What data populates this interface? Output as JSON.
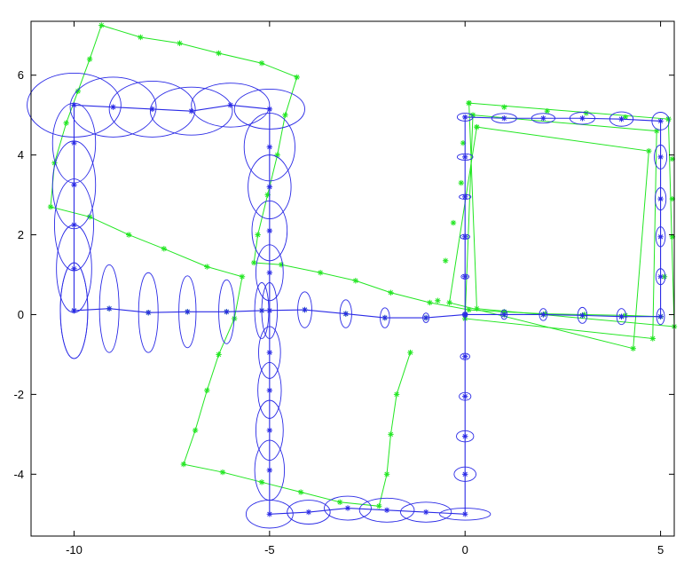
{
  "chart_data": {
    "type": "scatter",
    "title": "",
    "xlabel": "",
    "ylabel": "",
    "xlim": [
      -11.1,
      5.35
    ],
    "ylim": [
      -5.55,
      7.35
    ],
    "grid": false,
    "xticks": [
      -10,
      -5,
      0,
      5
    ],
    "yticks": [
      -4,
      -2,
      0,
      2,
      4,
      6
    ],
    "colors": {
      "estimate": "#2a2ae6",
      "truth": "#22e622",
      "axes": "#000000"
    },
    "series": [
      {
        "role": "estimated-trajectory",
        "color": "#2a2ae6",
        "marker": "*",
        "points": [
          [
            -10.0,
            0.1
          ],
          [
            -9.1,
            0.15
          ],
          [
            -8.1,
            0.05
          ],
          [
            -7.1,
            0.07
          ],
          [
            -6.1,
            0.07
          ],
          [
            -5.2,
            0.1
          ],
          [
            -4.1,
            0.12
          ],
          [
            -3.05,
            0.02
          ],
          [
            -2.05,
            -0.08
          ],
          [
            -1.0,
            -0.08
          ],
          [
            0.0,
            0.0
          ],
          [
            1.0,
            0.0
          ],
          [
            2.0,
            0.0
          ],
          [
            3.0,
            -0.02
          ],
          [
            4.0,
            -0.05
          ],
          [
            5.0,
            -0.05
          ],
          [
            5.0,
            0.95
          ],
          [
            5.0,
            1.95
          ],
          [
            5.0,
            2.9
          ],
          [
            5.0,
            3.95
          ],
          [
            5.0,
            4.85
          ],
          [
            4.0,
            4.9
          ],
          [
            3.0,
            4.92
          ],
          [
            2.0,
            4.92
          ],
          [
            1.0,
            4.92
          ],
          [
            0.0,
            4.95
          ],
          [
            0.0,
            3.95
          ],
          [
            0.0,
            2.95
          ],
          [
            0.0,
            1.95
          ],
          [
            0.0,
            0.95
          ],
          [
            0.0,
            0.0
          ],
          [
            0.0,
            -1.05
          ],
          [
            0.0,
            -2.05
          ],
          [
            0.0,
            -3.05
          ],
          [
            0.0,
            -4.0
          ],
          [
            0.0,
            -5.0
          ],
          [
            -1.0,
            -4.95
          ],
          [
            -2.0,
            -4.9
          ],
          [
            -3.0,
            -4.85
          ],
          [
            -4.0,
            -4.95
          ],
          [
            -5.0,
            -5.0
          ],
          [
            -5.0,
            -3.9
          ],
          [
            -5.0,
            -2.9
          ],
          [
            -5.0,
            -1.9
          ],
          [
            -5.0,
            -0.95
          ],
          [
            -5.0,
            0.1
          ],
          [
            -5.0,
            1.05
          ],
          [
            -5.0,
            2.1
          ],
          [
            -5.0,
            3.2
          ],
          [
            -5.0,
            4.2
          ],
          [
            -5.0,
            5.15
          ],
          [
            -6.0,
            5.25
          ],
          [
            -7.0,
            5.1
          ],
          [
            -8.0,
            5.15
          ],
          [
            -9.0,
            5.2
          ],
          [
            -10.0,
            5.25
          ],
          [
            -10.0,
            4.3
          ],
          [
            -10.0,
            3.25
          ],
          [
            -10.0,
            2.25
          ],
          [
            -10.0,
            1.15
          ],
          [
            -10.0,
            0.1
          ]
        ],
        "ellipse_sigma": [
          [
            0.35,
            1.2
          ],
          [
            0.25,
            1.1
          ],
          [
            0.25,
            1.0
          ],
          [
            0.22,
            0.9
          ],
          [
            0.2,
            0.8
          ],
          [
            0.18,
            0.7
          ],
          [
            0.18,
            0.45
          ],
          [
            0.15,
            0.35
          ],
          [
            0.12,
            0.25
          ],
          [
            0.08,
            0.12
          ],
          [
            0.06,
            0.06
          ],
          [
            0.08,
            0.12
          ],
          [
            0.1,
            0.15
          ],
          [
            0.12,
            0.2
          ],
          [
            0.12,
            0.2
          ],
          [
            0.1,
            0.2
          ],
          [
            0.12,
            0.2
          ],
          [
            0.12,
            0.25
          ],
          [
            0.14,
            0.28
          ],
          [
            0.16,
            0.3
          ],
          [
            0.22,
            0.22
          ],
          [
            0.3,
            0.18
          ],
          [
            0.32,
            0.15
          ],
          [
            0.3,
            0.12
          ],
          [
            0.32,
            0.12
          ],
          [
            0.2,
            0.1
          ],
          [
            0.2,
            0.08
          ],
          [
            0.15,
            0.06
          ],
          [
            0.12,
            0.06
          ],
          [
            0.1,
            0.06
          ],
          [
            0.06,
            0.06
          ],
          [
            0.12,
            0.08
          ],
          [
            0.15,
            0.1
          ],
          [
            0.22,
            0.14
          ],
          [
            0.28,
            0.18
          ],
          [
            0.65,
            0.15
          ],
          [
            0.65,
            0.25
          ],
          [
            0.7,
            0.3
          ],
          [
            0.6,
            0.3
          ],
          [
            0.55,
            0.3
          ],
          [
            0.6,
            0.35
          ],
          [
            0.38,
            0.75
          ],
          [
            0.35,
            0.75
          ],
          [
            0.3,
            0.7
          ],
          [
            0.28,
            0.65
          ],
          [
            0.2,
            0.7
          ],
          [
            0.35,
            0.7
          ],
          [
            0.45,
            0.75
          ],
          [
            0.55,
            0.8
          ],
          [
            0.65,
            0.85
          ],
          [
            0.9,
            0.5
          ],
          [
            1.0,
            0.55
          ],
          [
            1.05,
            0.6
          ],
          [
            1.1,
            0.7
          ],
          [
            1.1,
            0.75
          ],
          [
            1.2,
            0.8
          ],
          [
            0.55,
            1.0
          ],
          [
            0.55,
            1.1
          ],
          [
            0.5,
            1.15
          ],
          [
            0.45,
            1.1
          ],
          [
            0.35,
            1.2
          ]
        ]
      },
      {
        "role": "true-trajectory",
        "color": "#22e622",
        "marker": "*",
        "points": [
          [
            -10.0,
            0.1
          ],
          [
            -9.1,
            0.15
          ],
          [
            -8.1,
            0.05
          ],
          [
            -7.1,
            0.07
          ],
          [
            -6.1,
            0.07
          ],
          [
            -5.2,
            0.1
          ],
          [
            -4.1,
            0.12
          ],
          [
            -3.05,
            0.02
          ],
          [
            -2.05,
            -0.08
          ],
          [
            -1.0,
            -0.08
          ],
          [
            0.0,
            0.0
          ],
          [
            1.0,
            0.0
          ],
          [
            2.0,
            0.0
          ],
          [
            3.0,
            -0.02
          ],
          [
            4.0,
            -0.05
          ],
          [
            5.0,
            -0.05
          ],
          [
            5.1,
            0.95
          ],
          [
            5.3,
            1.95
          ],
          [
            5.3,
            2.9
          ],
          [
            5.3,
            3.9
          ],
          [
            5.2,
            4.9
          ],
          [
            4.1,
            4.95
          ],
          [
            3.1,
            5.05
          ],
          [
            2.1,
            5.1
          ],
          [
            1.0,
            5.2
          ],
          [
            0.1,
            5.3
          ],
          [
            -0.05,
            4.3
          ],
          [
            -0.1,
            3.3
          ],
          [
            -0.3,
            2.3
          ],
          [
            -0.5,
            1.35
          ],
          [
            -0.7,
            0.35
          ]
        ],
        "path": [
          [
            5.0,
            -0.05
          ],
          [
            4.1,
            -0.02
          ],
          [
            3.05,
            0.0
          ],
          [
            2.05,
            0.02
          ],
          [
            1.0,
            0.07
          ],
          [
            0.1,
            0.12
          ],
          [
            -0.9,
            0.3
          ],
          [
            -1.9,
            0.55
          ],
          [
            -2.8,
            0.85
          ],
          [
            -3.7,
            1.05
          ],
          [
            -4.7,
            1.25
          ],
          [
            -5.4,
            1.3
          ],
          [
            -5.3,
            2.0
          ],
          [
            -5.05,
            3.0
          ],
          [
            -4.8,
            4.0
          ],
          [
            -4.6,
            5.0
          ],
          [
            -4.3,
            5.95
          ],
          [
            -5.2,
            6.3
          ],
          [
            -6.3,
            6.55
          ],
          [
            -7.3,
            6.8
          ],
          [
            -8.3,
            6.95
          ],
          [
            -9.3,
            7.25
          ],
          [
            -9.6,
            6.4
          ],
          [
            -9.9,
            5.6
          ],
          [
            -10.2,
            4.8
          ],
          [
            -10.5,
            3.8
          ],
          [
            -10.6,
            2.7
          ],
          [
            -9.6,
            2.45
          ],
          [
            -8.6,
            2.0
          ],
          [
            -7.7,
            1.65
          ],
          [
            -6.6,
            1.2
          ],
          [
            -5.7,
            0.95
          ],
          [
            -5.9,
            -0.1
          ],
          [
            -6.3,
            -1.0
          ],
          [
            -6.6,
            -1.9
          ],
          [
            -6.9,
            -2.9
          ],
          [
            -7.2,
            -3.75
          ],
          [
            -6.2,
            -3.95
          ],
          [
            -5.2,
            -4.2
          ],
          [
            -4.2,
            -4.45
          ],
          [
            -3.2,
            -4.7
          ],
          [
            -2.2,
            -4.8
          ],
          [
            -2.0,
            -4.0
          ],
          [
            -1.9,
            -3.0
          ],
          [
            -1.75,
            -2.0
          ],
          [
            -1.4,
            -0.95
          ]
        ],
        "square_loops": [
          [
            [
              0.1,
              5.3
            ],
            [
              5.2,
              4.9
            ],
            [
              5.35,
              -0.3
            ],
            [
              0.3,
              0.15
            ],
            [
              0.1,
              5.3
            ]
          ],
          [
            [
              0.2,
              5.0
            ],
            [
              4.9,
              4.6
            ],
            [
              4.8,
              -0.6
            ],
            [
              0.0,
              -0.1
            ],
            [
              0.2,
              5.0
            ]
          ],
          [
            [
              0.3,
              4.7
            ],
            [
              4.7,
              4.1
            ],
            [
              4.3,
              -0.85
            ],
            [
              -0.4,
              0.3
            ],
            [
              0.3,
              4.7
            ]
          ]
        ]
      }
    ]
  }
}
